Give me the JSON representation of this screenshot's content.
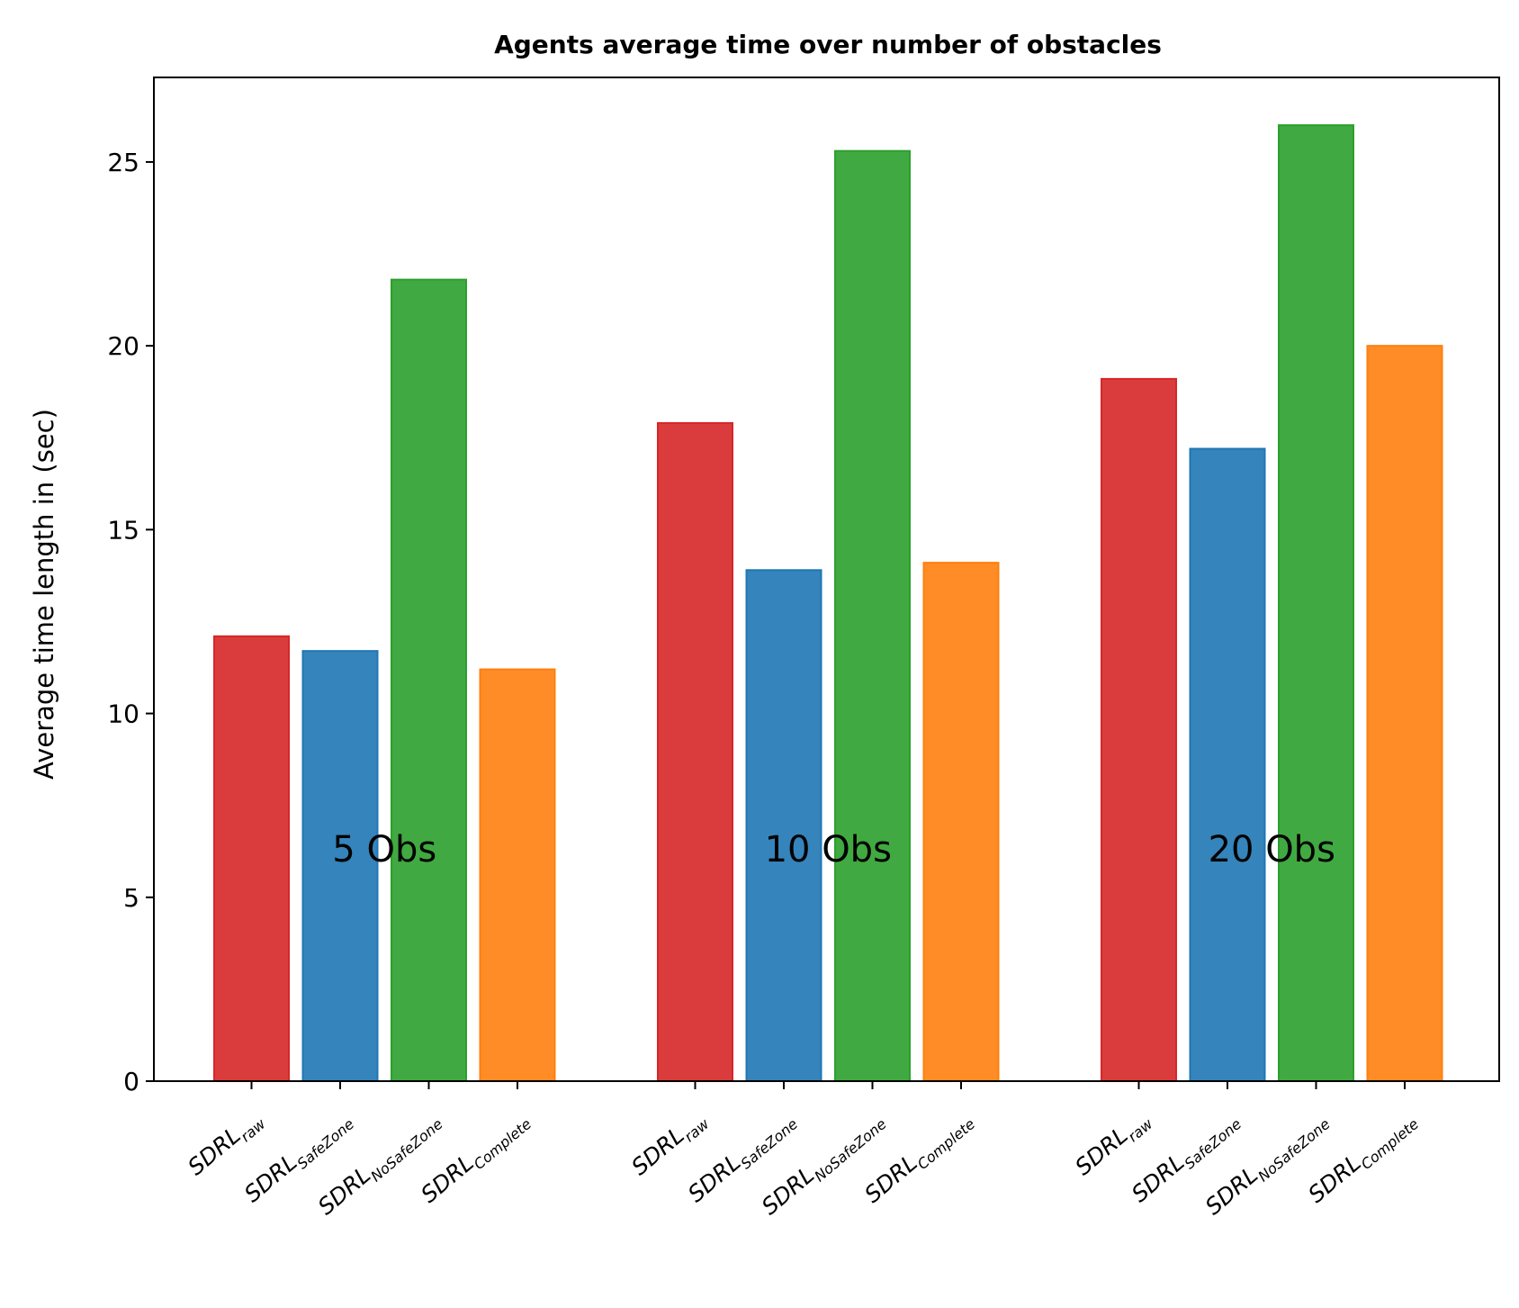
{
  "chart_data": {
    "type": "bar",
    "title": "Agents average time over number of obstacles",
    "ylabel": "Average time length in (sec)",
    "xlabel": "",
    "ylim": [
      0,
      27.3
    ],
    "yticks": [
      0,
      5,
      10,
      15,
      20,
      25
    ],
    "grid": false,
    "groups": [
      {
        "annotation": "5 Obs",
        "bars": [
          {
            "base": "SDRL",
            "sub": "raw",
            "value": 12.1,
            "color": "#d62728"
          },
          {
            "base": "SDRL",
            "sub": "SafeZone",
            "value": 11.7,
            "color": "#1f77b4"
          },
          {
            "base": "SDRL",
            "sub": "NoSafeZone",
            "value": 21.8,
            "color": "#2ca02c"
          },
          {
            "base": "SDRL",
            "sub": "Complete",
            "value": 11.2,
            "color": "#ff7f0e"
          }
        ]
      },
      {
        "annotation": "10 Obs",
        "bars": [
          {
            "base": "SDRL",
            "sub": "raw",
            "value": 17.9,
            "color": "#d62728"
          },
          {
            "base": "SDRL",
            "sub": "SafeZone",
            "value": 13.9,
            "color": "#1f77b4"
          },
          {
            "base": "SDRL",
            "sub": "NoSafeZone",
            "value": 25.3,
            "color": "#2ca02c"
          },
          {
            "base": "SDRL",
            "sub": "Complete",
            "value": 14.1,
            "color": "#ff7f0e"
          }
        ]
      },
      {
        "annotation": "20 Obs",
        "bars": [
          {
            "base": "SDRL",
            "sub": "raw",
            "value": 19.1,
            "color": "#d62728"
          },
          {
            "base": "SDRL",
            "sub": "SafeZone",
            "value": 17.2,
            "color": "#1f77b4"
          },
          {
            "base": "SDRL",
            "sub": "NoSafeZone",
            "value": 26.0,
            "color": "#2ca02c"
          },
          {
            "base": "SDRL",
            "sub": "Complete",
            "value": 20.0,
            "color": "#ff7f0e"
          }
        ]
      }
    ]
  }
}
